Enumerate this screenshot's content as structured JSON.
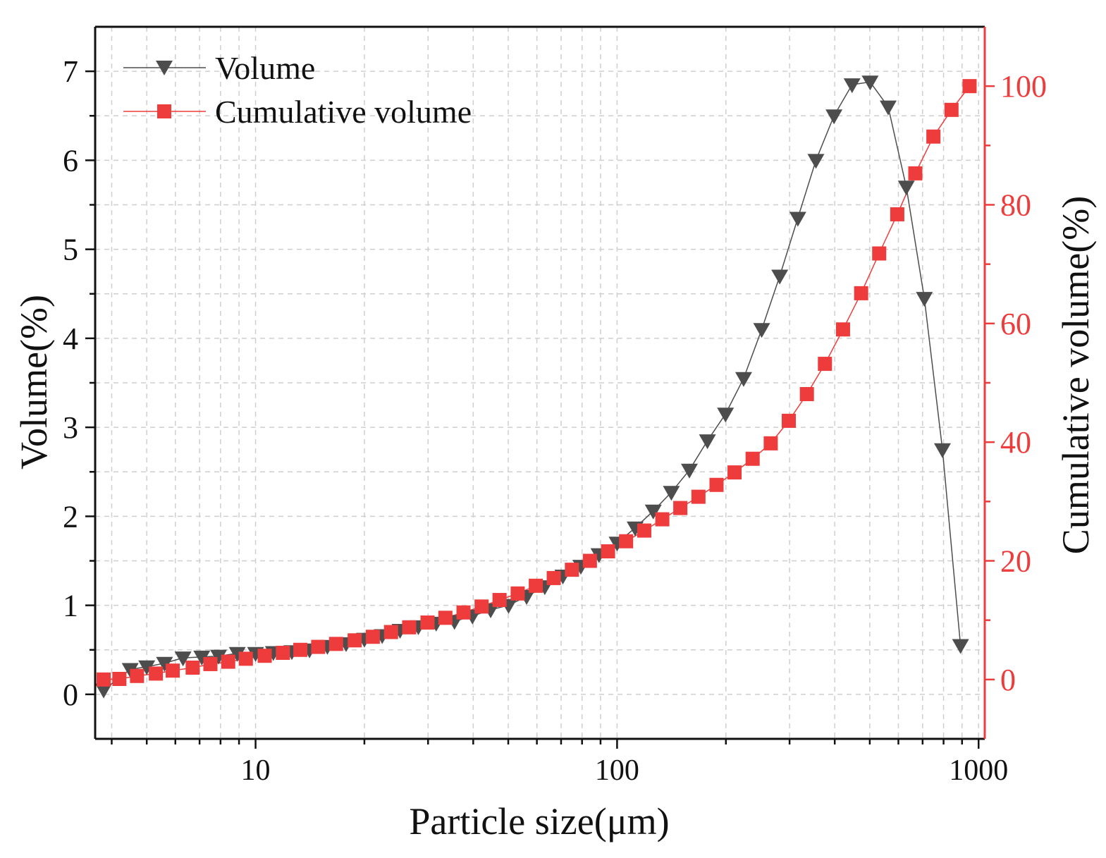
{
  "chart_data": {
    "type": "line",
    "x_axis": {
      "label": "Particle size(μm)",
      "scale": "log",
      "range": [
        3.6,
        1040
      ],
      "ticks": [
        10,
        100,
        1000
      ],
      "tick_labels": [
        "10",
        "100",
        "1000"
      ]
    },
    "y_axis_left": {
      "label": "Volume(%)",
      "range": [
        -0.5,
        7.5
      ],
      "ticks": [
        0,
        1,
        2,
        3,
        4,
        5,
        6,
        7
      ],
      "tick_labels": [
        "0",
        "1",
        "2",
        "3",
        "4",
        "5",
        "6",
        "7"
      ]
    },
    "y_axis_right": {
      "label": "Cumulative volume(%)",
      "range": [
        -10,
        110
      ],
      "ticks": [
        0,
        20,
        40,
        60,
        80,
        100
      ],
      "tick_labels": [
        "0",
        "20",
        "40",
        "60",
        "80",
        "100"
      ],
      "color": "#ee3b3b"
    },
    "grid": true,
    "legend_position": "top-left",
    "series": [
      {
        "name": "Volume",
        "axis": "left",
        "marker": "triangle-down",
        "color": "#4d4d4d",
        "x": [
          3.8,
          4.5,
          5.0,
          5.6,
          6.3,
          7.1,
          7.9,
          8.9,
          10.0,
          11.2,
          12.6,
          14.1,
          15.8,
          17.8,
          20.0,
          22.4,
          25.1,
          28.2,
          31.6,
          35.5,
          39.8,
          44.7,
          50.1,
          56.2,
          63.1,
          70.8,
          79.4,
          89.1,
          100.0,
          112.2,
          125.9,
          141.3,
          158.5,
          177.8,
          199.5,
          223.9,
          251.2,
          281.8,
          316.2,
          354.8,
          398.1,
          446.7,
          501.2,
          562.3,
          631.0,
          707.9,
          794.3,
          891.3
        ],
        "values": [
          0.05,
          0.28,
          0.31,
          0.35,
          0.41,
          0.42,
          0.43,
          0.46,
          0.46,
          0.47,
          0.48,
          0.5,
          0.54,
          0.57,
          0.62,
          0.66,
          0.72,
          0.76,
          0.8,
          0.82,
          0.88,
          0.95,
          1.0,
          1.1,
          1.21,
          1.33,
          1.44,
          1.57,
          1.7,
          1.87,
          2.06,
          2.27,
          2.52,
          2.85,
          3.15,
          3.55,
          4.1,
          4.7,
          5.35,
          6.0,
          6.5,
          6.85,
          6.88,
          6.6,
          5.7,
          4.45,
          2.75,
          0.55
        ]
      },
      {
        "name": "Cumulative volume",
        "axis": "right",
        "marker": "square",
        "color": "#ee3b3b",
        "x": [
          3.8,
          4.2,
          4.7,
          5.3,
          5.9,
          6.7,
          7.5,
          8.4,
          9.4,
          10.6,
          11.9,
          13.3,
          14.9,
          16.7,
          18.8,
          21.1,
          23.7,
          26.6,
          29.9,
          33.5,
          37.6,
          42.2,
          47.3,
          53.1,
          59.6,
          66.8,
          75.0,
          84.1,
          94.4,
          105.9,
          118.9,
          133.4,
          149.6,
          167.9,
          188.4,
          211.3,
          237.1,
          266.1,
          298.5,
          335.0,
          375.8,
          421.7,
          473.2,
          530.9,
          595.7,
          668.3,
          749.9,
          841.4,
          944.1
        ],
        "values": [
          0.0,
          0.1,
          0.6,
          1.0,
          1.5,
          2.0,
          2.6,
          3.0,
          3.5,
          4.0,
          4.5,
          5.0,
          5.5,
          6.0,
          6.6,
          7.2,
          8.0,
          8.8,
          9.6,
          10.4,
          11.3,
          12.3,
          13.4,
          14.5,
          15.8,
          17.1,
          18.5,
          20.0,
          21.6,
          23.3,
          25.1,
          27.0,
          28.9,
          30.8,
          32.8,
          34.9,
          37.2,
          39.8,
          43.6,
          48.1,
          53.2,
          59.0,
          65.1,
          71.8,
          78.4,
          85.3,
          91.5,
          96.0,
          100.0
        ]
      }
    ]
  }
}
